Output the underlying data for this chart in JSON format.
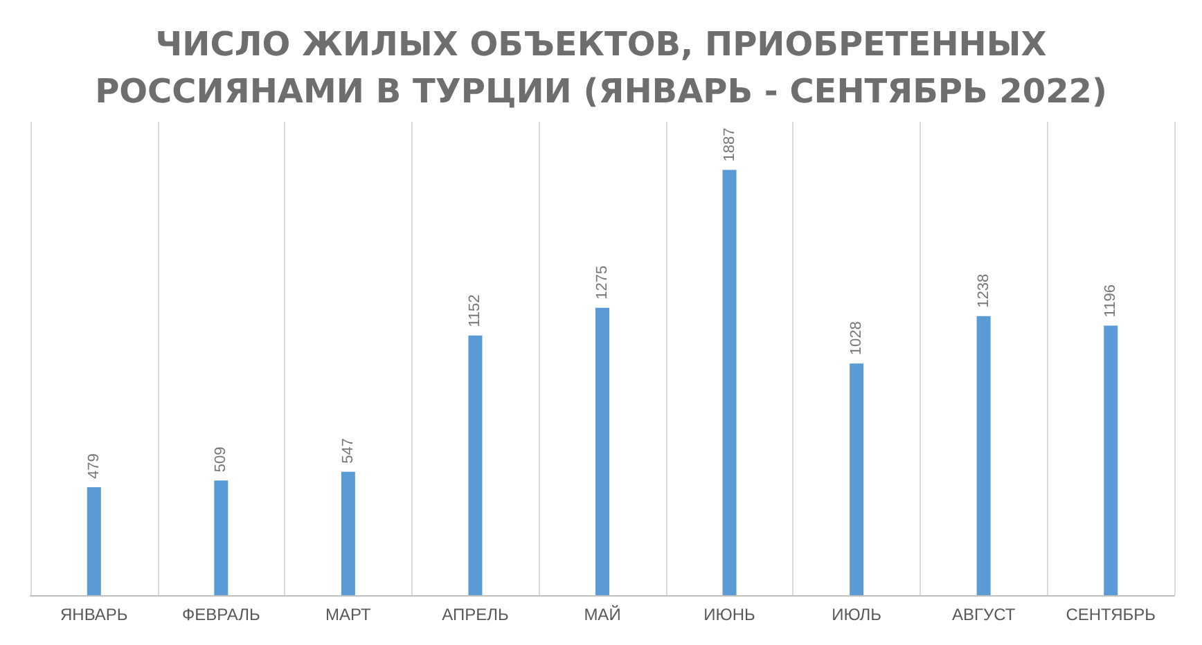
{
  "chart_data": {
    "type": "bar",
    "title": "ЧИСЛО ЖИЛЫХ ОБЪЕКТОВ, ПРИОБРЕТЕННЫХ\nРОССИЯНАМИ В ТУРЦИИ (ЯНВАРЬ - СЕНТЯБРЬ 2022)",
    "categories": [
      "ЯНВАРЬ",
      "ФЕВРАЛЬ",
      "МАРТ",
      "АПРЕЛЬ",
      "МАЙ",
      "ИЮНЬ",
      "ИЮЛЬ",
      "АВГУСТ",
      "СЕНТЯБРЬ"
    ],
    "values": [
      479,
      509,
      547,
      1152,
      1275,
      1887,
      1028,
      1238,
      1196
    ],
    "color": "#5b9bd5",
    "data_labels": true,
    "grid": "x",
    "tick_labels": "x"
  }
}
